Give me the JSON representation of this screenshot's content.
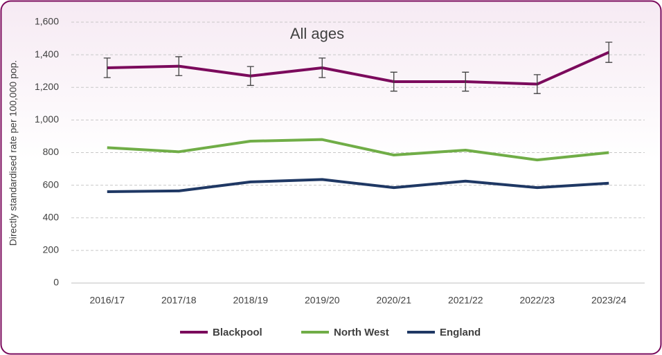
{
  "chart_data": {
    "type": "line",
    "title": "All ages",
    "y_label": "Directly standardised rate per 100,000 pop.",
    "categories": [
      "2016/17",
      "2017/18",
      "2018/19",
      "2019/20",
      "2020/21",
      "2021/22",
      "2022/23",
      "2023/24"
    ],
    "series": [
      {
        "name": "Blackpool",
        "color": "#7b0a5c",
        "values": [
          1320,
          1330,
          1270,
          1320,
          1235,
          1235,
          1220,
          1415
        ],
        "errors": [
          60,
          58,
          58,
          60,
          58,
          58,
          58,
          62
        ]
      },
      {
        "name": "North West",
        "color": "#70ad47",
        "values": [
          830,
          805,
          870,
          880,
          785,
          815,
          755,
          800
        ]
      },
      {
        "name": "England",
        "color": "#1f3864",
        "values": [
          560,
          565,
          620,
          635,
          585,
          625,
          585,
          612
        ]
      }
    ],
    "ylim": [
      0,
      1600
    ],
    "yticks": [
      0,
      200,
      400,
      600,
      800,
      {
        "value": 1000,
        "label": "1,000"
      },
      {
        "value": 1200,
        "label": "1,200"
      },
      {
        "value": 1400,
        "label": "1,400"
      },
      {
        "value": 1600,
        "label": "1,600"
      }
    ],
    "grid": true,
    "legend": "bottom"
  }
}
